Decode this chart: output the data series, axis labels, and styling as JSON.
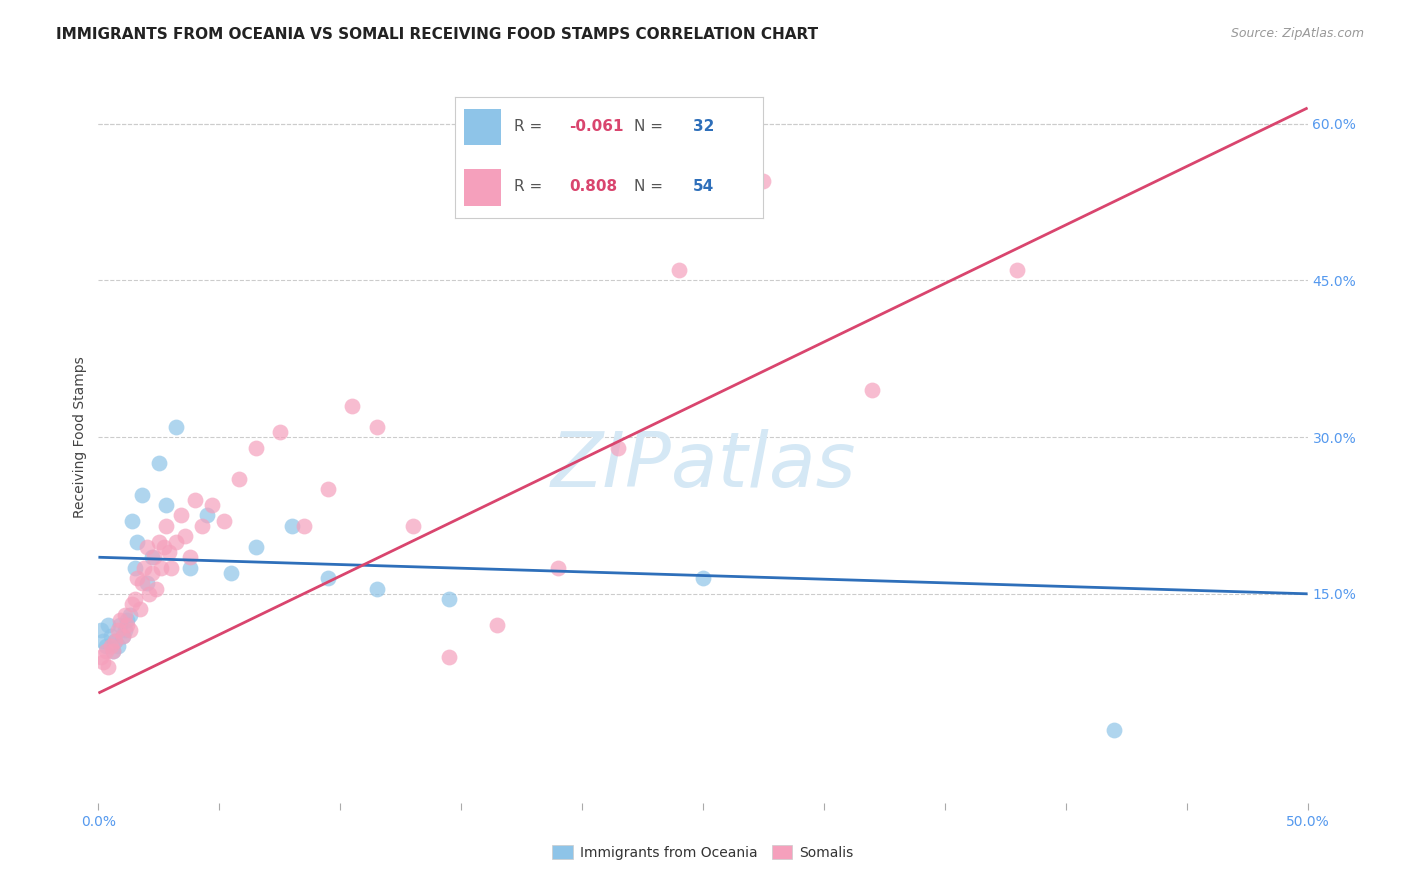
{
  "title": "IMMIGRANTS FROM OCEANIA VS SOMALI RECEIVING FOOD STAMPS CORRELATION CHART",
  "source": "Source: ZipAtlas.com",
  "ylabel": "Receiving Food Stamps",
  "xlim": [
    0.0,
    0.5
  ],
  "ylim": [
    -0.05,
    0.65
  ],
  "xticks": [
    0.0,
    0.05,
    0.1,
    0.15,
    0.2,
    0.25,
    0.3,
    0.35,
    0.4,
    0.45,
    0.5
  ],
  "xticklabels_show": [
    "0.0%",
    "",
    "",
    "",
    "",
    "",
    "",
    "",
    "",
    "",
    "50.0%"
  ],
  "yticks_right": [
    0.15,
    0.3,
    0.45,
    0.6
  ],
  "yticklabels_right": [
    "15.0%",
    "30.0%",
    "45.0%",
    "60.0%"
  ],
  "legend_r_blue": "-0.061",
  "legend_n_blue": "32",
  "legend_r_pink": "0.808",
  "legend_n_pink": "54",
  "watermark": "ZIPatlas",
  "blue_scatter_x": [
    0.001,
    0.002,
    0.003,
    0.004,
    0.005,
    0.006,
    0.007,
    0.008,
    0.009,
    0.01,
    0.011,
    0.012,
    0.013,
    0.014,
    0.015,
    0.016,
    0.018,
    0.02,
    0.022,
    0.025,
    0.028,
    0.032,
    0.038,
    0.045,
    0.055,
    0.065,
    0.08,
    0.095,
    0.115,
    0.145,
    0.25,
    0.42
  ],
  "blue_scatter_y": [
    0.115,
    0.105,
    0.1,
    0.12,
    0.11,
    0.095,
    0.105,
    0.1,
    0.12,
    0.11,
    0.115,
    0.125,
    0.13,
    0.22,
    0.175,
    0.2,
    0.245,
    0.16,
    0.185,
    0.275,
    0.235,
    0.31,
    0.175,
    0.225,
    0.17,
    0.195,
    0.215,
    0.165,
    0.155,
    0.145,
    0.165,
    0.02
  ],
  "pink_scatter_x": [
    0.001,
    0.002,
    0.003,
    0.004,
    0.005,
    0.006,
    0.007,
    0.008,
    0.009,
    0.01,
    0.011,
    0.012,
    0.013,
    0.014,
    0.015,
    0.016,
    0.017,
    0.018,
    0.019,
    0.02,
    0.021,
    0.022,
    0.023,
    0.024,
    0.025,
    0.026,
    0.027,
    0.028,
    0.029,
    0.03,
    0.032,
    0.034,
    0.036,
    0.038,
    0.04,
    0.043,
    0.047,
    0.052,
    0.058,
    0.065,
    0.075,
    0.085,
    0.095,
    0.105,
    0.115,
    0.13,
    0.145,
    0.165,
    0.19,
    0.215,
    0.24,
    0.275,
    0.32,
    0.38
  ],
  "pink_scatter_y": [
    0.09,
    0.085,
    0.095,
    0.08,
    0.1,
    0.095,
    0.105,
    0.115,
    0.125,
    0.11,
    0.13,
    0.12,
    0.115,
    0.14,
    0.145,
    0.165,
    0.135,
    0.16,
    0.175,
    0.195,
    0.15,
    0.17,
    0.185,
    0.155,
    0.2,
    0.175,
    0.195,
    0.215,
    0.19,
    0.175,
    0.2,
    0.225,
    0.205,
    0.185,
    0.24,
    0.215,
    0.235,
    0.22,
    0.26,
    0.29,
    0.305,
    0.215,
    0.25,
    0.33,
    0.31,
    0.215,
    0.09,
    0.12,
    0.175,
    0.29,
    0.46,
    0.545,
    0.345,
    0.46
  ],
  "blue_line_x": [
    0.0,
    0.5
  ],
  "blue_line_y": [
    0.185,
    0.15
  ],
  "pink_line_x": [
    0.0,
    0.5
  ],
  "pink_line_y": [
    0.055,
    0.615
  ],
  "blue_color": "#8ec4e8",
  "pink_color": "#f5a0bc",
  "blue_line_color": "#2e6fba",
  "pink_line_color": "#d9456e",
  "grid_color": "#cccccc",
  "background_color": "#ffffff",
  "title_fontsize": 11,
  "source_fontsize": 9,
  "axis_label_fontsize": 10,
  "tick_fontsize": 10,
  "legend_fontsize": 11,
  "watermark_fontsize": 55,
  "watermark_color": "#d5e8f5",
  "right_tick_color": "#5599ee"
}
